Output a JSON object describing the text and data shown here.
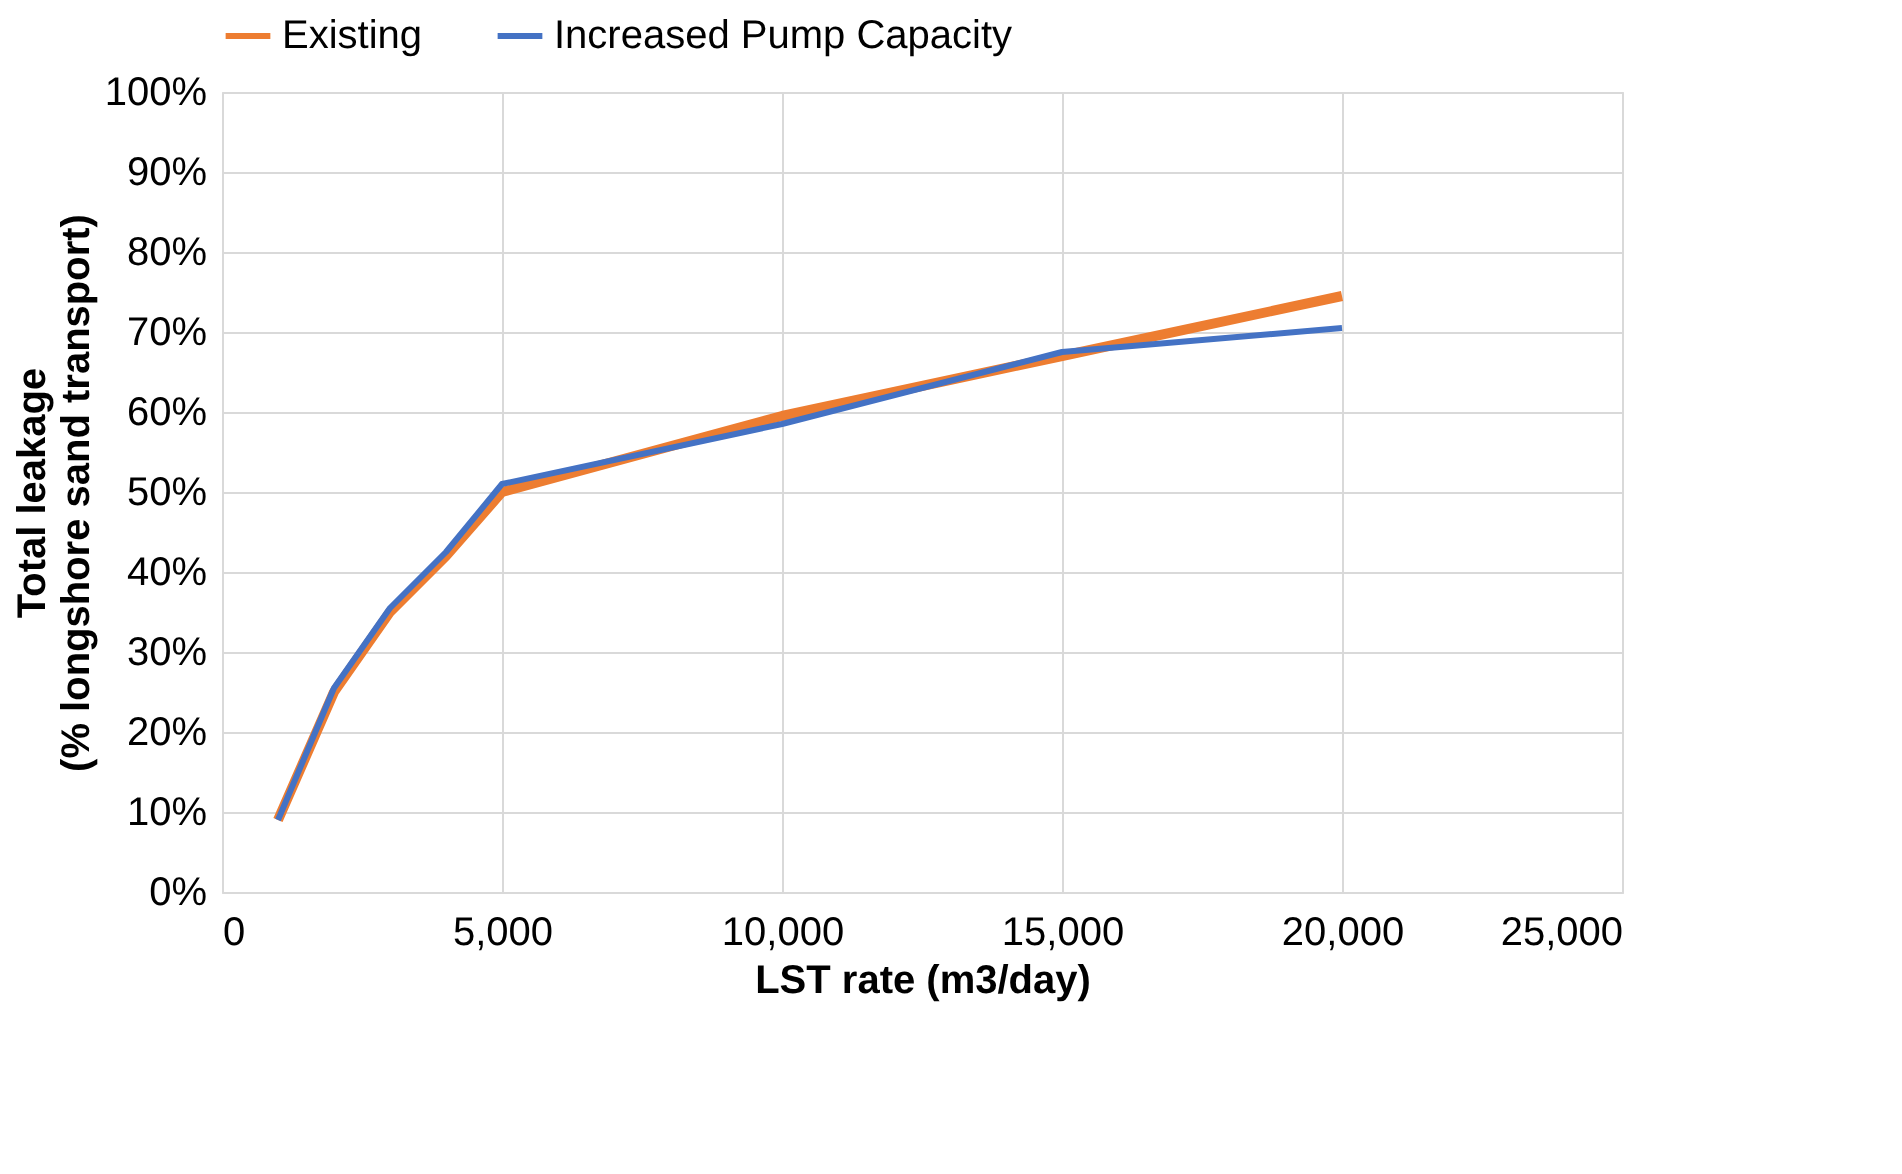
{
  "chart_data": {
    "type": "line",
    "xlabel": "LST rate (m3/day)",
    "ylabel": "Total leakage\n(% longshore sand transport)",
    "x": [
      1000,
      2000,
      3000,
      4000,
      5000,
      10000,
      15000,
      20000
    ],
    "series": [
      {
        "name": "Existing",
        "color": "#ed7d31",
        "values": [
          9,
          25,
          35,
          42,
          50,
          59.5,
          67,
          74.5
        ]
      },
      {
        "name": "Increased Pump Capacity",
        "color": "#4472c4",
        "values": [
          9,
          25.5,
          35.5,
          42.5,
          51,
          58.5,
          67.5,
          70.5
        ]
      }
    ],
    "xlim": [
      0,
      25000
    ],
    "xticks": [
      0,
      {
        "value": 5000,
        "label": "5,000"
      },
      {
        "value": 10000,
        "label": "10,000"
      },
      {
        "value": 15000,
        "label": "15,000"
      },
      {
        "value": 20000,
        "label": "20,000"
      },
      {
        "value": 25000,
        "label": "25,000"
      }
    ],
    "ylim": [
      0,
      100
    ],
    "yticks": [
      {
        "value": 0,
        "label": "0%"
      },
      {
        "value": 10,
        "label": "10%"
      },
      {
        "value": 20,
        "label": "20%"
      },
      {
        "value": 30,
        "label": "30%"
      },
      {
        "value": 40,
        "label": "40%"
      },
      {
        "value": 50,
        "label": "50%"
      },
      {
        "value": 60,
        "label": "60%"
      },
      {
        "value": 70,
        "label": "70%"
      },
      {
        "value": 80,
        "label": "80%"
      },
      {
        "value": 90,
        "label": "90%"
      },
      {
        "value": 100,
        "label": "100%"
      }
    ],
    "grid": true,
    "legend": "top",
    "marker": "none",
    "line_style": "solid"
  }
}
